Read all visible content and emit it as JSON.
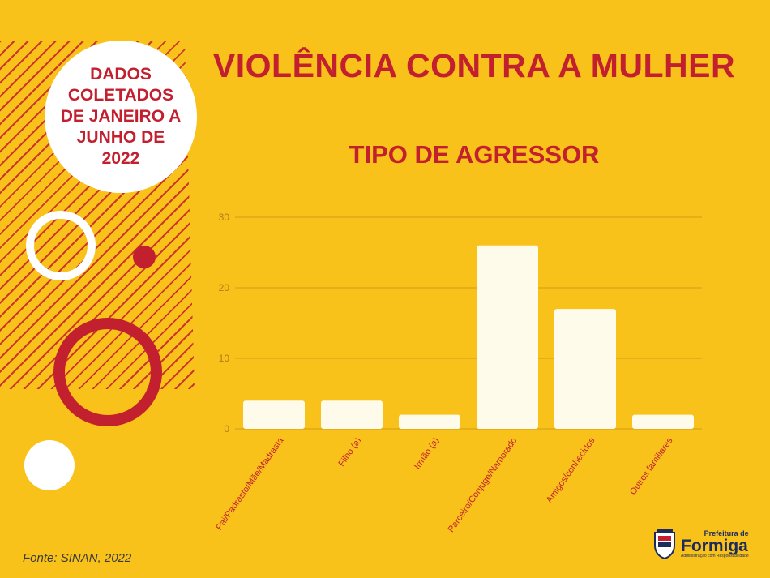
{
  "info_badge": "DADOS\nCOLETADOS\nDE JANEIRO A\nJUNHO DE\n2022",
  "source": "Fonte: SINAN, 2022",
  "logo": {
    "top": "Prefeitura de",
    "name": "Formiga",
    "tagline": "Administração com Responsabilidade"
  },
  "colors": {
    "background": "#f8c21a",
    "accent": "#c21f2f",
    "bar": "#fffbea"
  },
  "chart_data": {
    "type": "bar",
    "title": "VIOLÊNCIA CONTRA A MULHER",
    "subtitle": "TIPO DE AGRESSOR",
    "categories": [
      "Pai/Padrasto/Mãe/Madrasta",
      "Filho (a)",
      "Irmão (a)",
      "Parceiro/Conjuge/Namorado",
      "Amigos/conhecidos",
      "Outros familiares"
    ],
    "values": [
      4,
      4,
      2,
      26,
      17,
      2
    ],
    "yticks": [
      0,
      10,
      20,
      30
    ],
    "ylim": [
      0,
      30
    ],
    "grid": true,
    "legend": "none"
  }
}
